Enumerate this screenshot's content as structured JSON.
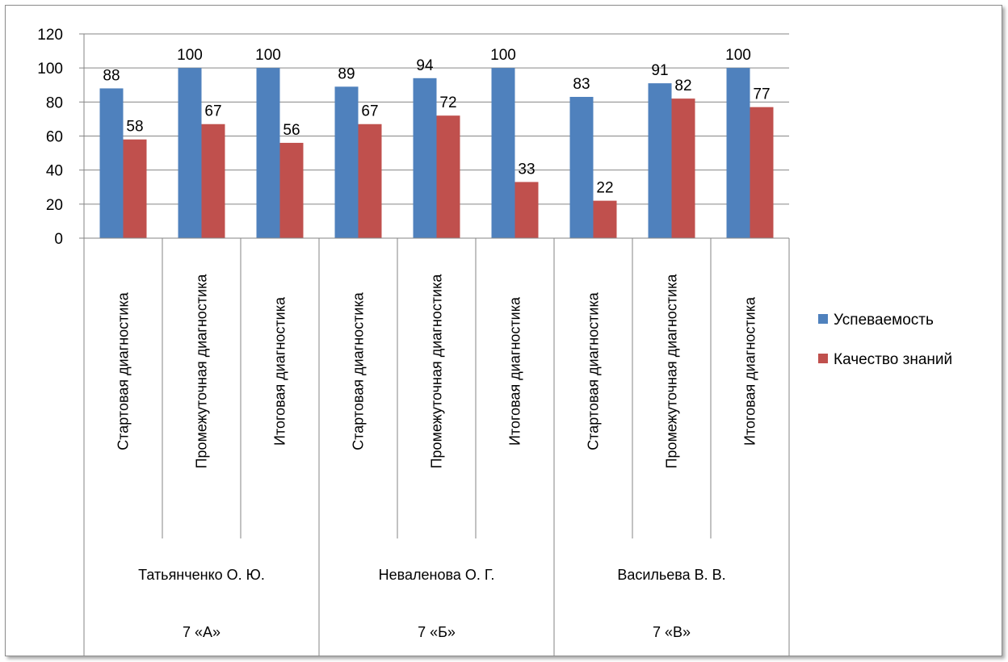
{
  "chart_data": {
    "type": "bar",
    "title": "",
    "xlabel": "",
    "ylabel": "",
    "ylim": [
      0,
      120
    ],
    "yticks": [
      0,
      20,
      40,
      60,
      80,
      100,
      120
    ],
    "grid": true,
    "legend_position": "right",
    "categories": [
      "Стартовая диагностика",
      "Промежуточная диагностика",
      "Итоговая диагностика",
      "Стартовая диагностика",
      "Промежуточная диагностика",
      "Итоговая диагностика",
      "Стартовая диагностика",
      "Промежуточная диагностика",
      "Итоговая диагностика"
    ],
    "teachers": [
      "Татьянченко О. Ю.",
      "Неваленова О. Г.",
      "Васильева В. В."
    ],
    "classes": [
      "7 «А»",
      "7 «Б»",
      "7 «В»"
    ],
    "series": [
      {
        "name": "Успеваемость",
        "color": "#4F81BD",
        "values": [
          88,
          100,
          100,
          89,
          94,
          100,
          83,
          91,
          100
        ]
      },
      {
        "name": "Качество знаний",
        "color": "#C0504D",
        "values": [
          58,
          67,
          56,
          67,
          72,
          33,
          22,
          82,
          77
        ]
      }
    ]
  }
}
